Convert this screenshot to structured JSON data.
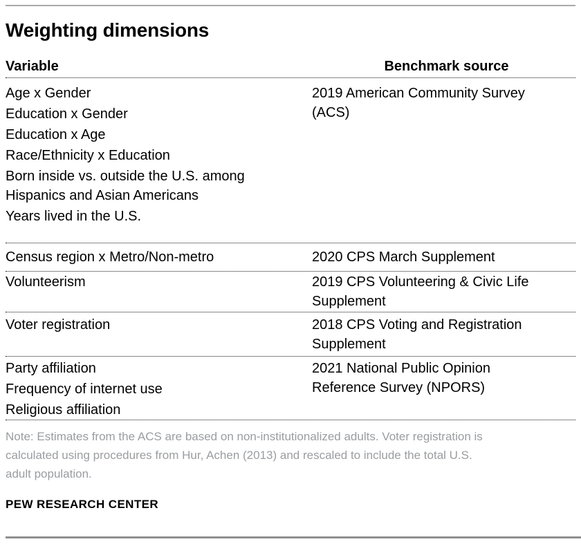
{
  "page": {
    "title": "Weighting dimensions",
    "source_label": "PEW RESEARCH CENTER",
    "note_lines": [
      "Note: Estimates from the ACS are based on non-institutionalized adults. Voter registration is",
      "calculated using procedures from Hur, Achen (2013) and rescaled to include the total U.S.",
      "adult population."
    ]
  },
  "table": {
    "headers": {
      "variable": "Variable",
      "benchmark": "Benchmark source"
    },
    "rows": [
      {
        "variables": [
          "Age x Gender",
          "Education x Gender",
          "Education x Age",
          "Race/Ethnicity x Education",
          "Born inside vs. outside the U.S. among Hispanics and Asian Americans",
          "Years lived in the U.S."
        ],
        "benchmark": "2019 American Community Survey (ACS)"
      },
      {
        "variables": [
          "Census region x Metro/Non-metro"
        ],
        "benchmark": "2020 CPS March Supplement"
      },
      {
        "variables": [
          "Volunteerism"
        ],
        "benchmark": "2019 CPS Volunteering & Civic Life Supplement"
      },
      {
        "variables": [
          "Voter registration"
        ],
        "benchmark": "2018 CPS Voting and Registration Supplement"
      },
      {
        "variables": [
          "Party affiliation",
          "Frequency of internet use",
          "Religious affiliation"
        ],
        "benchmark": "2021 National Public Opinion Reference Survey (NPORS)"
      }
    ]
  },
  "colors": {
    "rule_top": "#a8a8a8",
    "rule_bottom": "#8f8f8f",
    "note_text": "#9a9da0",
    "body_text": "#000000"
  }
}
